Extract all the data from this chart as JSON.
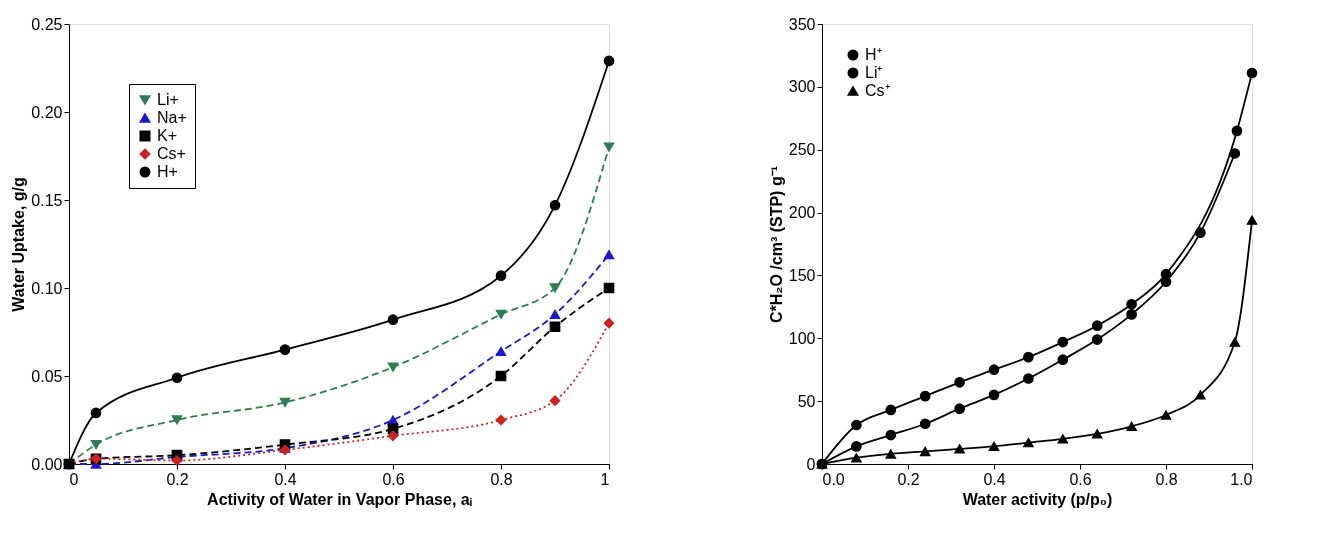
{
  "chart_data": [
    {
      "type": "line",
      "xlabel": "Activity of Water in Vapor Phase, aᵢ",
      "ylabel": "Water Uptake, g/g",
      "xlim": [
        0,
        1
      ],
      "ylim": [
        0,
        0.25
      ],
      "xticks": [
        0,
        0.2,
        0.4,
        0.6,
        0.8,
        1
      ],
      "yticks": [
        {
          "value": 0,
          "label": "0.00"
        },
        {
          "value": 0.05,
          "label": "0.05"
        },
        {
          "value": 0.1,
          "label": "0.10"
        },
        {
          "value": 0.15,
          "label": "0.15"
        },
        {
          "value": 0.2,
          "label": "0.20"
        },
        {
          "value": 0.25,
          "label": "0.25"
        }
      ],
      "grid": false,
      "legend": "top left",
      "series": [
        {
          "name": "Li+",
          "color": "#2e7d4f",
          "marker": "triangle_down",
          "line_style": "dashed",
          "x": [
            0,
            0.05,
            0.2,
            0.4,
            0.6,
            0.8,
            0.9,
            1
          ],
          "values": [
            0,
            0.011,
            0.025,
            0.035,
            0.055,
            0.085,
            0.1,
            0.18
          ]
        },
        {
          "name": "Na+",
          "color": "#1a1acc",
          "marker": "triangle",
          "line_style": "dashed",
          "x": [
            0,
            0.05,
            0.2,
            0.4,
            0.6,
            0.8,
            0.9,
            1
          ],
          "values": [
            0,
            0.0,
            0.004,
            0.009,
            0.025,
            0.064,
            0.085,
            0.119
          ]
        },
        {
          "name": "K+",
          "color": "#000000",
          "marker": "square",
          "line_style": "dashed",
          "x": [
            0,
            0.05,
            0.2,
            0.4,
            0.6,
            0.8,
            0.9,
            1
          ],
          "values": [
            0,
            0.003,
            0.005,
            0.011,
            0.02,
            0.05,
            0.078,
            0.1
          ]
        },
        {
          "name": "Cs+",
          "color": "#cc2222",
          "marker": "diamond",
          "line_style": "dotted",
          "x": [
            0,
            0.05,
            0.2,
            0.4,
            0.6,
            0.8,
            0.9,
            1
          ],
          "values": [
            0,
            0.003,
            0.002,
            0.008,
            0.016,
            0.025,
            0.036,
            0.08
          ]
        },
        {
          "name": "H+",
          "color": "#000000",
          "marker": "circle",
          "line_style": "solid",
          "x": [
            0,
            0.05,
            0.2,
            0.4,
            0.6,
            0.8,
            0.9,
            1
          ],
          "values": [
            0,
            0.029,
            0.049,
            0.065,
            0.082,
            0.107,
            0.147,
            0.229
          ]
        }
      ]
    },
    {
      "type": "line",
      "xlabel": "Water activity (p/p₀)",
      "ylabel": "C*H₂O /cm³ (STP) g⁻¹",
      "xlim": [
        0,
        1
      ],
      "ylim": [
        0,
        350
      ],
      "xticks": [
        {
          "value": 0,
          "label": "0.0"
        },
        0.2,
        0.4,
        0.6,
        0.8,
        {
          "value": 1,
          "label": "1.0"
        }
      ],
      "yticks": [
        0,
        50,
        100,
        150,
        200,
        250,
        300,
        350
      ],
      "grid": false,
      "legend": "top left",
      "series": [
        {
          "name": "H⁺",
          "color": "#000000",
          "marker": "circle",
          "line_style": "solid",
          "x": [
            0,
            0.08,
            0.16,
            0.24,
            0.32,
            0.4,
            0.48,
            0.56,
            0.64,
            0.72,
            0.8,
            0.965,
            1.0
          ],
          "values": [
            0,
            31,
            43,
            54,
            65,
            75,
            85,
            97,
            110,
            127,
            151,
            265,
            311
          ]
        },
        {
          "name": "Li⁺",
          "color": "#000000",
          "marker": "circle",
          "line_style": "solid",
          "x": [
            0,
            0.08,
            0.16,
            0.24,
            0.32,
            0.4,
            0.48,
            0.56,
            0.64,
            0.72,
            0.8,
            0.88,
            0.96
          ],
          "values": [
            0,
            14,
            23,
            32,
            44,
            55,
            68,
            83,
            99,
            119,
            145,
            184,
            247
          ]
        },
        {
          "name": "Cs⁺",
          "color": "#000000",
          "marker": "triangle",
          "line_style": "solid",
          "x": [
            0,
            0.08,
            0.16,
            0.24,
            0.32,
            0.4,
            0.48,
            0.56,
            0.64,
            0.72,
            0.8,
            0.88,
            0.96,
            1.0
          ],
          "values": [
            0,
            5,
            8,
            10,
            12,
            14,
            17,
            20,
            24,
            30,
            39,
            55,
            97,
            194
          ]
        }
      ]
    }
  ]
}
